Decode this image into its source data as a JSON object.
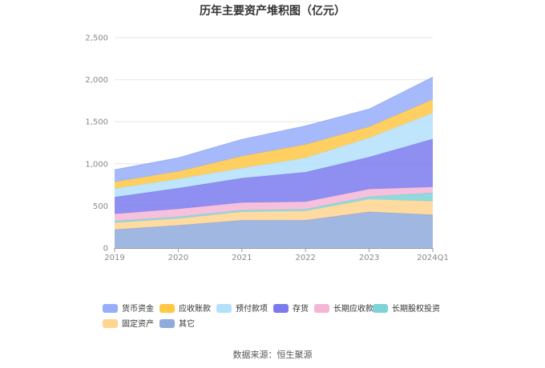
{
  "chart_data": {
    "type": "area",
    "stacked": true,
    "title": "历年主要资产堆积图（亿元）",
    "categories": [
      "2019",
      "2020",
      "2021",
      "2022",
      "2023",
      "2024Q1"
    ],
    "ylim": [
      0,
      2500
    ],
    "yticks": [
      "0",
      "500",
      "1,000",
      "1,500",
      "2,000",
      "2,500"
    ],
    "ytick_values": [
      0,
      500,
      1000,
      1500,
      2000,
      2500
    ],
    "grid": true,
    "legend_position": "bottom",
    "series": [
      {
        "name": "其它",
        "color": "#8faadc",
        "values": [
          220,
          270,
          330,
          330,
          430,
          395
        ]
      },
      {
        "name": "固定资产",
        "color": "#ffd591",
        "values": [
          80,
          80,
          100,
          110,
          150,
          160
        ]
      },
      {
        "name": "长期股权投资",
        "color": "#7dd3d8",
        "values": [
          20,
          20,
          20,
          20,
          30,
          100
        ]
      },
      {
        "name": "长期应收款",
        "color": "#f4b6d6",
        "values": [
          85,
          95,
          90,
          90,
          90,
          70
        ]
      },
      {
        "name": "存货",
        "color": "#7b7bef",
        "values": [
          200,
          245,
          290,
          350,
          380,
          570
        ]
      },
      {
        "name": "预付款项",
        "color": "#b3e0fa",
        "values": [
          100,
          110,
          120,
          170,
          230,
          310
        ]
      },
      {
        "name": "应收账款",
        "color": "#ffc845",
        "values": [
          80,
          90,
          140,
          160,
          130,
          160
        ]
      },
      {
        "name": "货币资金",
        "color": "#97aefa",
        "values": [
          145,
          160,
          200,
          220,
          210,
          265
        ]
      }
    ],
    "legend_order": [
      "货币资金",
      "应收账款",
      "预付款项",
      "存货",
      "长期应收款",
      "长期股权投资",
      "固定资产",
      "其它"
    ]
  },
  "footer": {
    "source": "数据来源：恒生聚源"
  }
}
